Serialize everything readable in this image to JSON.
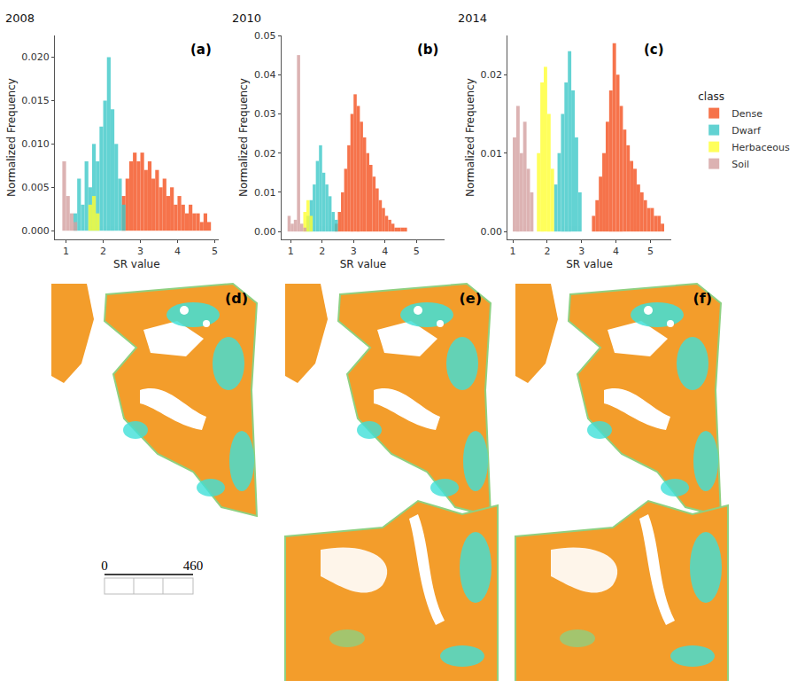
{
  "chart_data": [
    {
      "type": "histogram",
      "title": "2008",
      "panel_label": "(a)",
      "x_label": "SR value",
      "y_label": "Normalized Frequency",
      "xlim": [
        0.7,
        5.1
      ],
      "xticks": [
        1,
        2,
        3,
        4,
        5
      ],
      "ylim": [
        -0.001,
        0.0225
      ],
      "yticks": [
        {
          "value": 0,
          "label": "0.000"
        },
        {
          "value": 0.005,
          "label": "0.005"
        },
        {
          "value": 0.01,
          "label": "0.010"
        },
        {
          "value": 0.015,
          "label": "0.015"
        },
        {
          "value": 0.02,
          "label": "0.020"
        }
      ],
      "grid": false,
      "legend": "right",
      "series": [
        {
          "name": "Dense",
          "color": "#f4511e",
          "bins": [
            2.5,
            2.6,
            2.7,
            2.8,
            2.9,
            3.0,
            3.1,
            3.2,
            3.3,
            3.4,
            3.5,
            3.6,
            3.7,
            3.8,
            3.9,
            4.0,
            4.1,
            4.2,
            4.3,
            4.4,
            4.5,
            4.6,
            4.7,
            4.8,
            4.9
          ],
          "values": [
            0.004,
            0.006,
            0.008,
            0.009,
            0.008,
            0.009,
            0.007,
            0.008,
            0.006,
            0.007,
            0.005,
            0.006,
            0.004,
            0.005,
            0.003,
            0.004,
            0.003,
            0.002,
            0.003,
            0.002,
            0.002,
            0.001,
            0.002,
            0.001
          ]
        },
        {
          "name": "Dwarf",
          "color": "#3cc8c8",
          "bins": [
            1.2,
            1.3,
            1.4,
            1.5,
            1.6,
            1.7,
            1.8,
            1.9,
            2.0,
            2.1,
            2.2,
            2.3,
            2.4,
            2.5,
            2.6
          ],
          "values": [
            0.002,
            0.006,
            0.003,
            0.008,
            0.005,
            0.01,
            0.008,
            0.012,
            0.015,
            0.02,
            0.014,
            0.01,
            0.006,
            0.003
          ]
        },
        {
          "name": "Herbaceous",
          "color": "#ffff33",
          "bins": [
            1.6,
            1.7,
            1.8,
            1.9
          ],
          "values": [
            0.003,
            0.004,
            0.002
          ]
        },
        {
          "name": "Soil",
          "color": "#d4a0a0",
          "bins": [
            0.9,
            1.0,
            1.1,
            1.2,
            1.3
          ],
          "values": [
            0.008,
            0.004,
            0.002,
            0.001
          ]
        }
      ]
    },
    {
      "type": "histogram",
      "title": "2010",
      "panel_label": "(b)",
      "x_label": "SR value",
      "y_label": "Normalized Frequency",
      "xlim": [
        0.7,
        5.9
      ],
      "xticks": [
        1,
        2,
        3,
        4,
        5
      ],
      "ylim": [
        -0.002,
        0.05
      ],
      "yticks": [
        {
          "value": 0,
          "label": "0.00"
        },
        {
          "value": 0.01,
          "label": "0.01"
        },
        {
          "value": 0.02,
          "label": "0.02"
        },
        {
          "value": 0.03,
          "label": "0.03"
        },
        {
          "value": 0.04,
          "label": "0.04"
        },
        {
          "value": 0.05,
          "label": "0.05"
        }
      ],
      "grid": false,
      "legend": "right",
      "series": [
        {
          "name": "Dense",
          "color": "#f4511e",
          "bins": [
            2.4,
            2.5,
            2.6,
            2.7,
            2.8,
            2.9,
            3.0,
            3.1,
            3.2,
            3.3,
            3.4,
            3.5,
            3.6,
            3.7,
            3.8,
            3.9,
            4.0,
            4.1,
            4.2,
            4.3,
            4.4,
            4.5,
            4.6,
            4.7
          ],
          "values": [
            0.002,
            0.005,
            0.01,
            0.016,
            0.022,
            0.03,
            0.035,
            0.032,
            0.028,
            0.024,
            0.02,
            0.017,
            0.014,
            0.011,
            0.008,
            0.006,
            0.004,
            0.003,
            0.002,
            0.001,
            0.001,
            0.001,
            0.001
          ]
        },
        {
          "name": "Dwarf",
          "color": "#3cc8c8",
          "bins": [
            1.5,
            1.6,
            1.7,
            1.8,
            1.9,
            2.0,
            2.1,
            2.2,
            2.3,
            2.4,
            2.5
          ],
          "values": [
            0.004,
            0.008,
            0.012,
            0.018,
            0.022,
            0.015,
            0.012,
            0.009,
            0.005,
            0.003
          ]
        },
        {
          "name": "Herbaceous",
          "color": "#ffff33",
          "bins": [
            1.4,
            1.5,
            1.6,
            1.7
          ],
          "values": [
            0.005,
            0.008,
            0.004
          ]
        },
        {
          "name": "Soil",
          "color": "#d4a0a0",
          "bins": [
            0.9,
            1.0,
            1.1,
            1.2,
            1.3,
            1.4,
            1.5
          ],
          "values": [
            0.004,
            0.002,
            0.003,
            0.045,
            0.002,
            0.001
          ]
        }
      ]
    },
    {
      "type": "histogram",
      "title": "2014",
      "panel_label": "(c)",
      "x_label": "SR value",
      "y_label": "Normalized Frequency",
      "xlim": [
        0.85,
        5.6
      ],
      "xticks": [
        1,
        2,
        3,
        4,
        5
      ],
      "ylim": [
        -0.001,
        0.025
      ],
      "yticks": [
        {
          "value": 0,
          "label": "0.00"
        },
        {
          "value": 0.01,
          "label": "0.01"
        },
        {
          "value": 0.02,
          "label": "0.02"
        }
      ],
      "grid": false,
      "legend": "right",
      "series": [
        {
          "name": "Dense",
          "color": "#f4511e",
          "bins": [
            3.3,
            3.4,
            3.5,
            3.6,
            3.7,
            3.8,
            3.9,
            4.0,
            4.1,
            4.2,
            4.3,
            4.4,
            4.5,
            4.6,
            4.7,
            4.8,
            4.9,
            5.0,
            5.1,
            5.2,
            5.3,
            5.4
          ],
          "values": [
            0.002,
            0.004,
            0.007,
            0.01,
            0.014,
            0.018,
            0.024,
            0.02,
            0.016,
            0.013,
            0.011,
            0.009,
            0.008,
            0.006,
            0.005,
            0.004,
            0.003,
            0.003,
            0.002,
            0.002,
            0.001
          ]
        },
        {
          "name": "Dwarf",
          "color": "#3cc8c8",
          "bins": [
            2.2,
            2.3,
            2.4,
            2.5,
            2.6,
            2.7,
            2.8,
            2.9,
            3.0
          ],
          "values": [
            0.006,
            0.01,
            0.015,
            0.019,
            0.023,
            0.018,
            0.012,
            0.005
          ]
        },
        {
          "name": "Herbaceous",
          "color": "#ffff33",
          "bins": [
            1.7,
            1.8,
            1.9,
            2.0,
            2.1,
            2.2
          ],
          "values": [
            0.01,
            0.019,
            0.021,
            0.015,
            0.008
          ]
        },
        {
          "name": "Soil",
          "color": "#d4a0a0",
          "bins": [
            1.0,
            1.1,
            1.2,
            1.3,
            1.4,
            1.5,
            1.6
          ],
          "values": [
            0.012,
            0.016,
            0.01,
            0.014,
            0.008,
            0.005
          ]
        }
      ]
    }
  ],
  "legend_title": "class",
  "maps": [
    {
      "label": "(d)"
    },
    {
      "label": "(e)"
    },
    {
      "label": "(f)"
    }
  ],
  "scale_bar": {
    "ticks": [
      0,
      460
    ]
  }
}
